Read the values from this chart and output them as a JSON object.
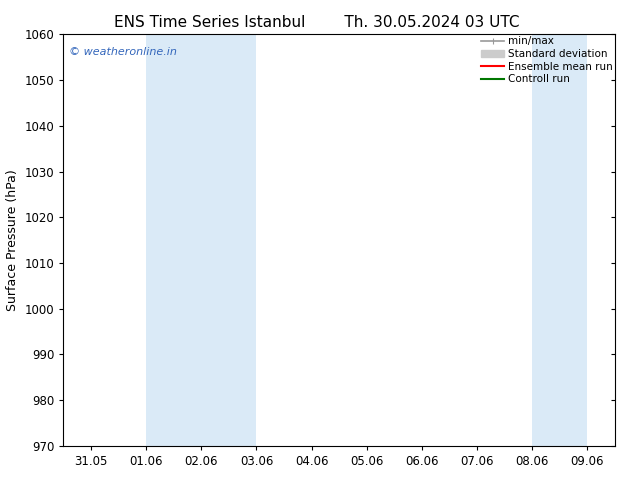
{
  "title_left": "ENS Time Series Istanbul",
  "title_right": "Th. 30.05.2024 03 UTC",
  "ylabel": "Surface Pressure (hPa)",
  "ylim": [
    970,
    1060
  ],
  "yticks": [
    970,
    980,
    990,
    1000,
    1010,
    1020,
    1030,
    1040,
    1050,
    1060
  ],
  "xtick_labels": [
    "31.05",
    "01.06",
    "02.06",
    "03.06",
    "04.06",
    "05.06",
    "06.06",
    "07.06",
    "08.06",
    "09.06"
  ],
  "x_positions": [
    0,
    1,
    2,
    3,
    4,
    5,
    6,
    7,
    8,
    9
  ],
  "xlim": [
    -0.5,
    9.5
  ],
  "shaded_bands": [
    {
      "xmin": 1,
      "xmax": 3,
      "color": "#daeaf7"
    },
    {
      "xmin": 8,
      "xmax": 9,
      "color": "#daeaf7"
    }
  ],
  "watermark": "© weatheronline.in",
  "watermark_color": "#3366bb",
  "legend_entries": [
    {
      "label": "min/max",
      "color": "#999999",
      "lw": 1.2
    },
    {
      "label": "Standard deviation",
      "color": "#cccccc",
      "lw": 6
    },
    {
      "label": "Ensemble mean run",
      "color": "#ff0000",
      "lw": 1.5
    },
    {
      "label": "Controll run",
      "color": "#007700",
      "lw": 1.5
    }
  ],
  "bg_color": "#ffffff",
  "plot_bg_color": "#ffffff",
  "title_fontsize": 11,
  "tick_fontsize": 8.5,
  "ylabel_fontsize": 9,
  "watermark_fontsize": 8,
  "legend_fontsize": 7.5
}
